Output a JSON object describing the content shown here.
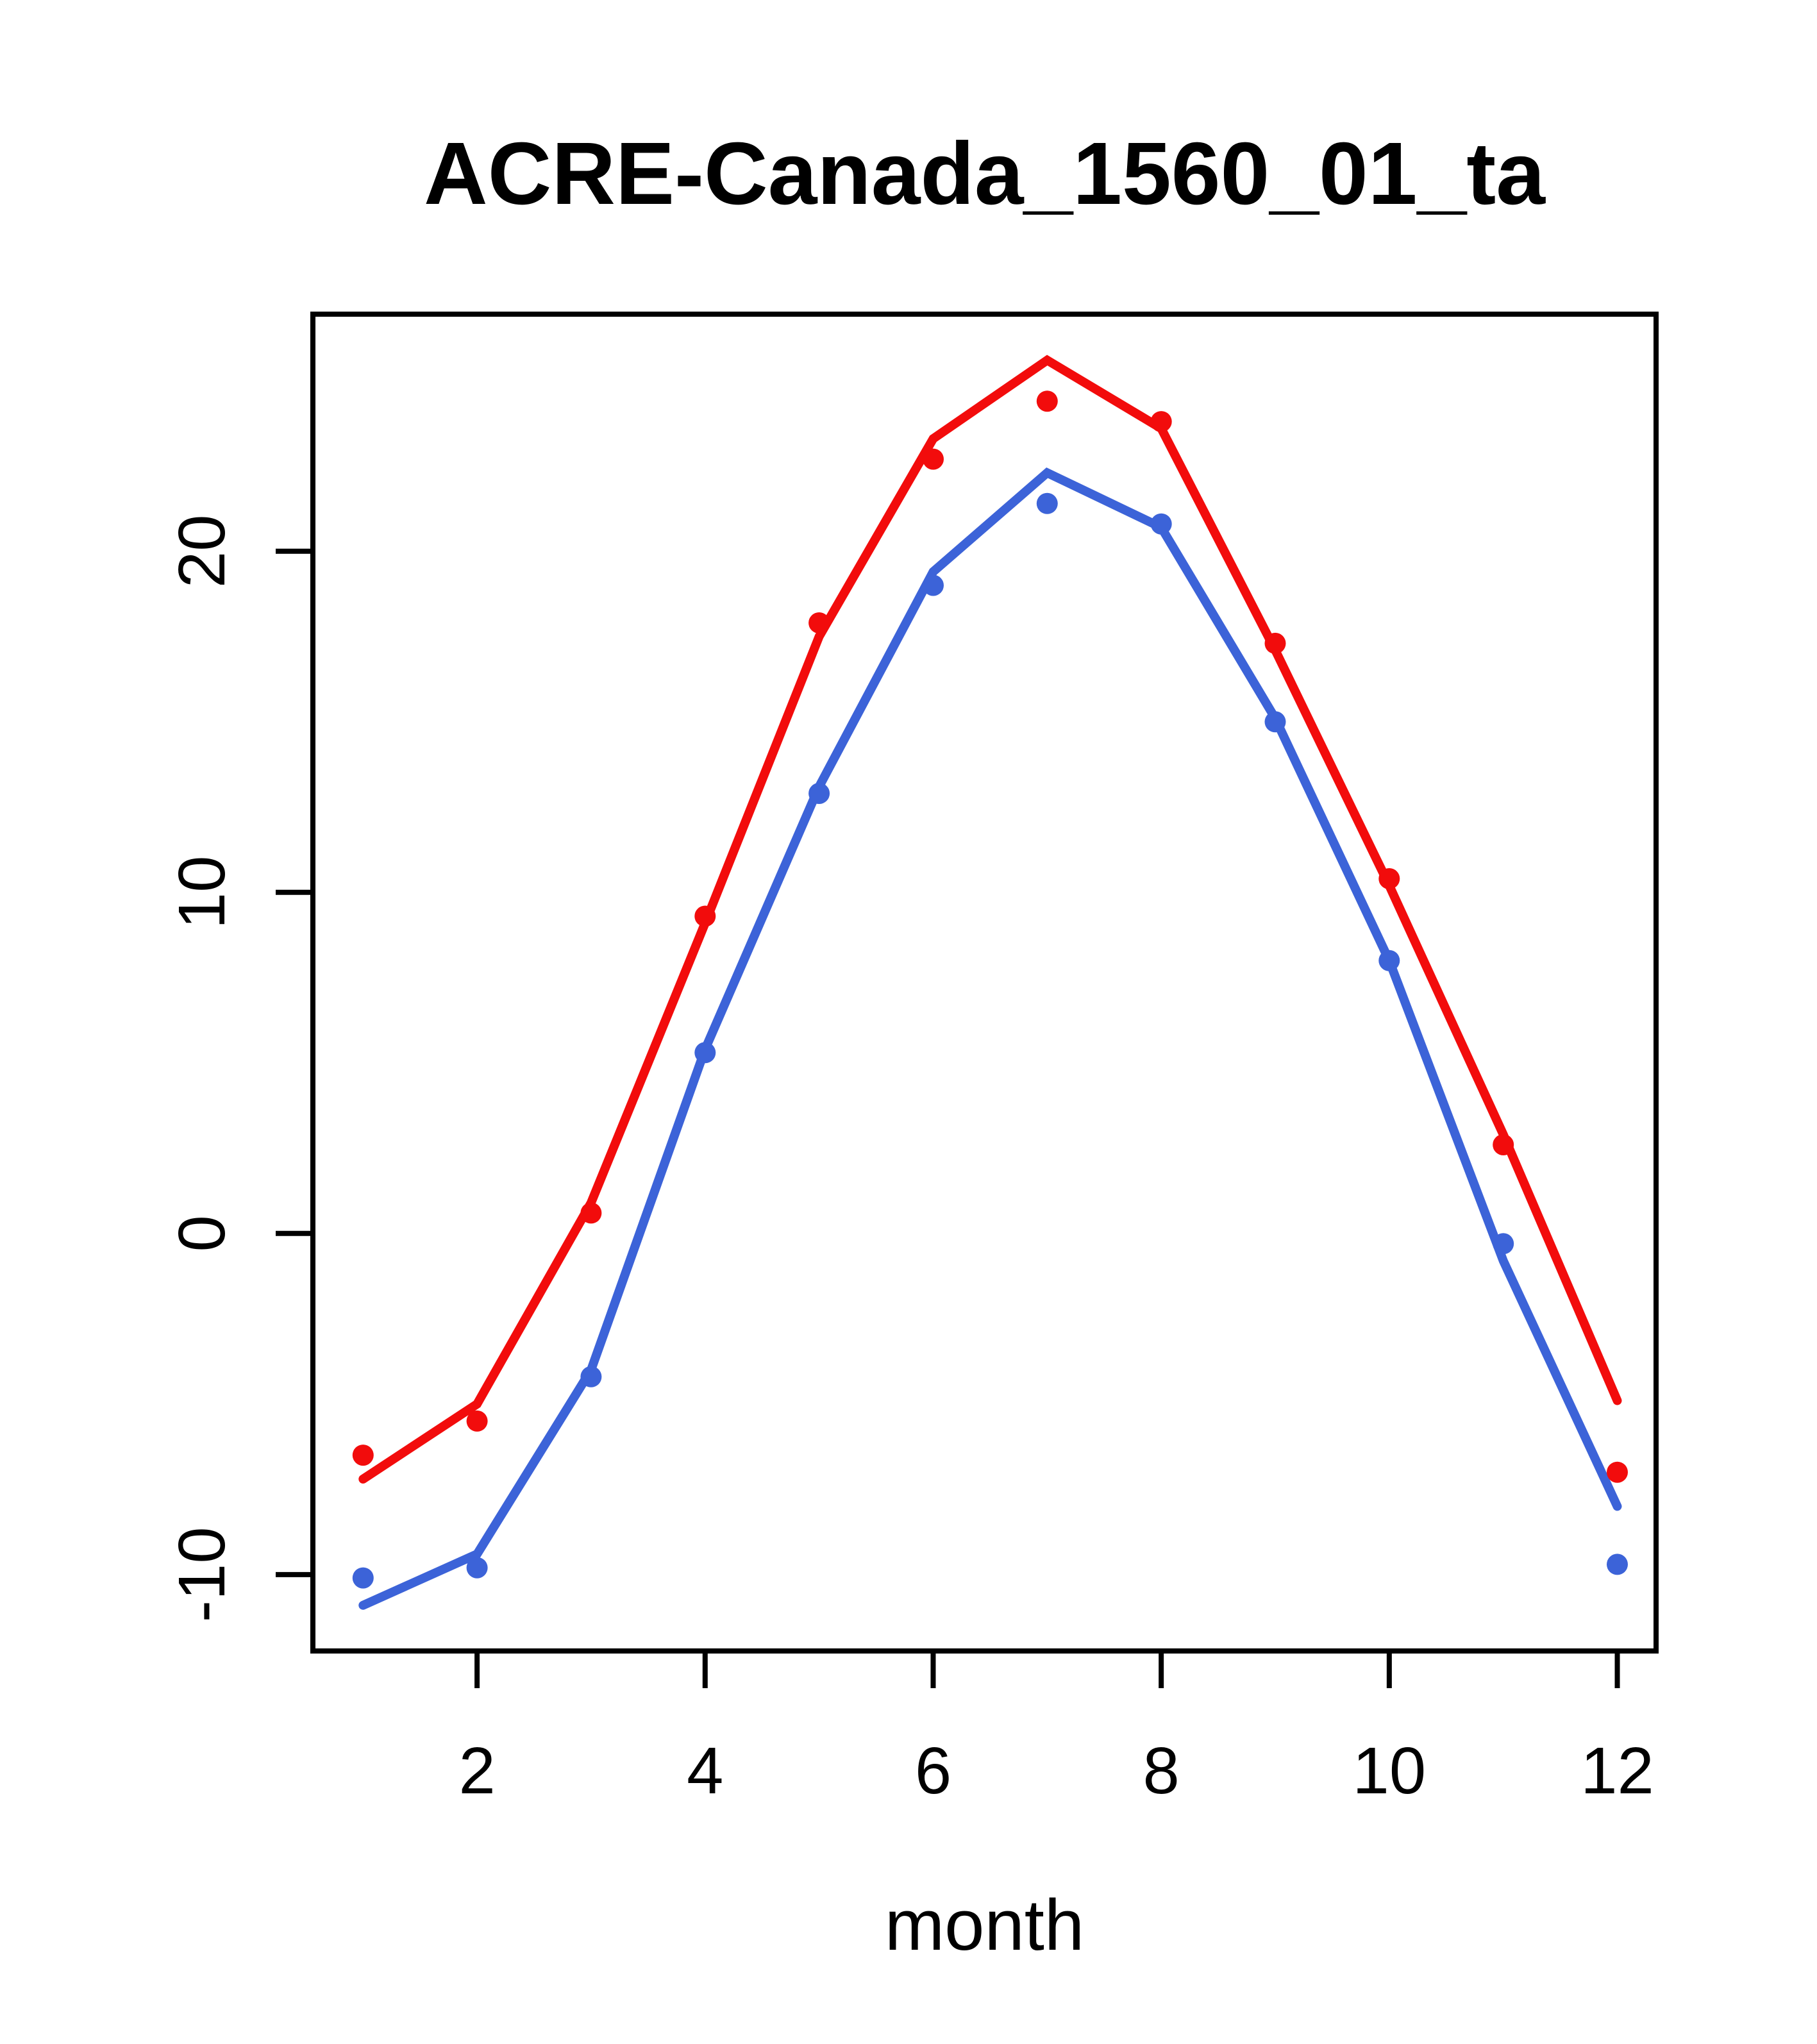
{
  "title": "ACRE-Canada_1560_01_ta",
  "xlabel": "month",
  "chart_data": {
    "type": "line",
    "title": "ACRE-Canada_1560_01_ta",
    "xlabel": "month",
    "ylabel": "",
    "x": [
      1,
      2,
      3,
      4,
      5,
      6,
      7,
      8,
      9,
      10,
      11,
      12
    ],
    "xticks": [
      2,
      4,
      6,
      8,
      10,
      12
    ],
    "yticks": [
      -10,
      0,
      10,
      20
    ],
    "xlim": [
      0.56,
      12.34
    ],
    "ylim": [
      -12.24,
      26.95
    ],
    "grid": false,
    "legend": null,
    "colors": {
      "red_series": "#f20c0c",
      "blue_series": "#3c63d8",
      "axis": "#000000"
    },
    "series": [
      {
        "name": "red-line",
        "style": "line",
        "color": "#f20c0c",
        "values": [
          -7.2,
          -5.0,
          0.9,
          9.1,
          17.5,
          23.3,
          25.6,
          23.6,
          17.1,
          10.2,
          2.9,
          -4.9
        ]
      },
      {
        "name": "blue-line",
        "style": "line",
        "color": "#3c63d8",
        "values": [
          -10.9,
          -9.4,
          -4.0,
          5.4,
          13.1,
          19.4,
          22.3,
          20.7,
          15.1,
          8.0,
          -0.8,
          -8.0
        ]
      },
      {
        "name": "red-points",
        "style": "points",
        "color": "#f20c0c",
        "values": [
          -6.5,
          -5.5,
          0.6,
          9.3,
          17.9,
          22.7,
          24.4,
          23.8,
          17.3,
          10.4,
          2.6,
          -7.0
        ]
      },
      {
        "name": "blue-points",
        "style": "points",
        "color": "#3c63d8",
        "values": [
          -10.1,
          -9.8,
          -4.2,
          5.3,
          12.9,
          19.0,
          21.4,
          20.8,
          15.0,
          8.0,
          -0.3,
          -9.7
        ]
      }
    ]
  }
}
